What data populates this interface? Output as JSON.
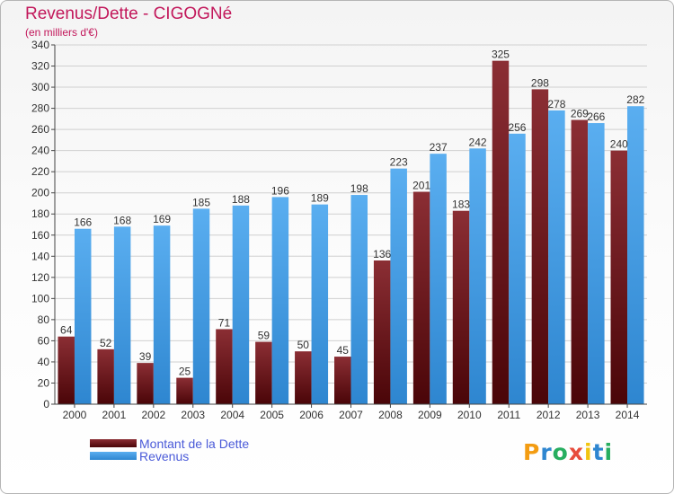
{
  "colors": {
    "title": "#c2185b",
    "dette_light": "#8b2e34",
    "dette_dark": "#4a0508",
    "revenus_light": "#5aaef0",
    "revenus_dark": "#2e86d0",
    "grid": "#d0d0d0"
  },
  "legend": {
    "dette_label": "Montant de la Dette",
    "revenus_label": "Revenus"
  },
  "logo": {
    "text": "Proxiti"
  },
  "chart_data": {
    "type": "bar",
    "title": "Revenus/Dette - CIGOGNé",
    "subtitle": "(en milliers d'€)",
    "categories": [
      "2000",
      "2001",
      "2002",
      "2003",
      "2004",
      "2005",
      "2006",
      "2007",
      "2008",
      "2009",
      "2010",
      "2011",
      "2012",
      "2013",
      "2014"
    ],
    "series": [
      {
        "name": "Montant de la Dette",
        "values": [
          64,
          52,
          39,
          25,
          71,
          59,
          50,
          45,
          136,
          201,
          183,
          325,
          298,
          269,
          240
        ]
      },
      {
        "name": "Revenus",
        "values": [
          166,
          168,
          169,
          185,
          188,
          196,
          189,
          198,
          223,
          237,
          242,
          256,
          278,
          266,
          282
        ]
      }
    ],
    "ylim": [
      0,
      340
    ],
    "yticks": [
      0,
      20,
      40,
      60,
      80,
      100,
      120,
      140,
      160,
      180,
      200,
      220,
      240,
      260,
      280,
      300,
      320,
      340
    ],
    "grid": true,
    "legend_position": "bottom-left"
  }
}
